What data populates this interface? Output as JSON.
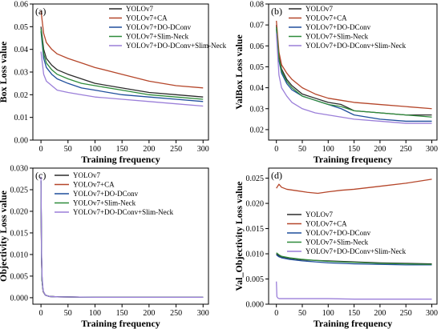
{
  "series_style": [
    {
      "name": "YOLOv7",
      "color": "#2b2b2b"
    },
    {
      "name": "YOLOv7+CA",
      "color": "#b5462a"
    },
    {
      "name": "YOLOv7+DO-DConv",
      "color": "#1f4e9c"
    },
    {
      "name": "YOLOv7+Slim-Neck",
      "color": "#2e8b3a"
    },
    {
      "name": "YOLOv7+DO-DConv+Slim-Neck",
      "color": "#9b7fd9"
    }
  ],
  "chart_data": [
    {
      "type": "line",
      "panel_label": "(a)",
      "xlabel": "Training frequency",
      "ylabel": "Box Loss value",
      "xlim": [
        -15,
        310
      ],
      "ylim": [
        0.0,
        0.06
      ],
      "xticks": [
        0,
        50,
        100,
        150,
        200,
        250,
        300
      ],
      "yticks": [
        0.0,
        0.01,
        0.02,
        0.03,
        0.04,
        0.05,
        0.06
      ],
      "ytick_labels": [
        "0.00",
        "0.01",
        "0.02",
        "0.03",
        "0.04",
        "0.05",
        "0.06"
      ],
      "legend_position": "top-right",
      "series": [
        {
          "name": "YOLOv7",
          "x": [
            0,
            5,
            10,
            20,
            30,
            50,
            75,
            100,
            150,
            200,
            250,
            300
          ],
          "values": [
            0.05,
            0.04,
            0.036,
            0.033,
            0.031,
            0.029,
            0.027,
            0.025,
            0.023,
            0.021,
            0.02,
            0.019
          ]
        },
        {
          "name": "YOLOv7+CA",
          "x": [
            0,
            5,
            10,
            20,
            30,
            50,
            75,
            100,
            150,
            200,
            250,
            300
          ],
          "values": [
            0.057,
            0.047,
            0.043,
            0.04,
            0.038,
            0.036,
            0.034,
            0.032,
            0.029,
            0.026,
            0.024,
            0.023
          ]
        },
        {
          "name": "YOLOv7+DO-DConv",
          "x": [
            0,
            5,
            10,
            20,
            30,
            50,
            75,
            100,
            150,
            200,
            250,
            300
          ],
          "values": [
            0.048,
            0.036,
            0.032,
            0.029,
            0.027,
            0.025,
            0.023,
            0.022,
            0.02,
            0.019,
            0.018,
            0.017
          ]
        },
        {
          "name": "YOLOv7+Slim-Neck",
          "x": [
            0,
            5,
            10,
            20,
            30,
            50,
            75,
            100,
            150,
            200,
            250,
            300
          ],
          "values": [
            0.049,
            0.038,
            0.034,
            0.031,
            0.029,
            0.027,
            0.025,
            0.024,
            0.022,
            0.02,
            0.019,
            0.018
          ]
        },
        {
          "name": "YOLOv7+DO-DConv+Slim-Neck",
          "x": [
            0,
            5,
            10,
            20,
            30,
            50,
            75,
            100,
            150,
            200,
            250,
            300
          ],
          "values": [
            0.039,
            0.029,
            0.026,
            0.024,
            0.022,
            0.021,
            0.02,
            0.019,
            0.018,
            0.017,
            0.016,
            0.015
          ]
        }
      ]
    },
    {
      "type": "line",
      "panel_label": "(b)",
      "xlabel": "Training frequency",
      "ylabel": "ValBox Loss value",
      "xlim": [
        -15,
        310
      ],
      "ylim": [
        0.015,
        0.08
      ],
      "xticks": [
        0,
        50,
        100,
        150,
        200,
        250,
        300
      ],
      "yticks": [
        0.02,
        0.03,
        0.04,
        0.05,
        0.06,
        0.07,
        0.08
      ],
      "ytick_labels": [
        "0.02",
        "0.03",
        "0.04",
        "0.05",
        "0.06",
        "0.07",
        "0.08"
      ],
      "legend_position": "top-right",
      "series": [
        {
          "name": "YOLOv7",
          "x": [
            0,
            5,
            10,
            20,
            30,
            50,
            75,
            100,
            125,
            150,
            200,
            250,
            300
          ],
          "values": [
            0.07,
            0.055,
            0.049,
            0.044,
            0.041,
            0.037,
            0.035,
            0.033,
            0.032,
            0.029,
            0.028,
            0.027,
            0.027
          ]
        },
        {
          "name": "YOLOv7+CA",
          "x": [
            0,
            5,
            10,
            20,
            30,
            50,
            75,
            100,
            125,
            150,
            200,
            250,
            300
          ],
          "values": [
            0.072,
            0.057,
            0.051,
            0.047,
            0.044,
            0.04,
            0.037,
            0.035,
            0.034,
            0.033,
            0.032,
            0.031,
            0.03
          ]
        },
        {
          "name": "YOLOv7+DO-DConv",
          "x": [
            0,
            5,
            10,
            20,
            30,
            50,
            75,
            100,
            125,
            150,
            200,
            250,
            300
          ],
          "values": [
            0.068,
            0.053,
            0.047,
            0.042,
            0.039,
            0.036,
            0.034,
            0.032,
            0.03,
            0.027,
            0.025,
            0.024,
            0.024
          ]
        },
        {
          "name": "YOLOv7+Slim-Neck",
          "x": [
            0,
            5,
            10,
            20,
            30,
            50,
            75,
            100,
            125,
            150,
            200,
            250,
            300
          ],
          "values": [
            0.069,
            0.054,
            0.048,
            0.043,
            0.04,
            0.036,
            0.034,
            0.032,
            0.031,
            0.029,
            0.028,
            0.027,
            0.026
          ]
        },
        {
          "name": "YOLOv7+DO-DConv+Slim-Neck",
          "x": [
            0,
            5,
            10,
            20,
            30,
            50,
            75,
            100,
            125,
            150,
            200,
            250,
            300
          ],
          "values": [
            0.066,
            0.046,
            0.04,
            0.036,
            0.033,
            0.03,
            0.028,
            0.027,
            0.026,
            0.025,
            0.024,
            0.023,
            0.023
          ]
        }
      ]
    },
    {
      "type": "line",
      "panel_label": "(c)",
      "xlabel": "Training frequency",
      "ylabel": "Objectivity Loss value",
      "xlim": [
        -15,
        310
      ],
      "ylim": [
        -0.0015,
        0.03
      ],
      "xticks": [
        0,
        50,
        100,
        150,
        200,
        250,
        300
      ],
      "yticks": [
        0.0,
        0.005,
        0.01,
        0.015,
        0.02,
        0.025,
        0.03
      ],
      "ytick_labels": [
        "0.000",
        "0.005",
        "0.010",
        "0.015",
        "0.020",
        "0.025",
        "0.030"
      ],
      "legend_position": "top-right",
      "series": [
        {
          "name": "YOLOv7",
          "x": [
            0,
            1,
            2,
            4,
            8,
            15,
            30,
            100,
            200,
            300
          ],
          "values": [
            0.027,
            0.01,
            0.004,
            0.0015,
            0.0006,
            0.0003,
            0.0002,
            0.0001,
            0.0001,
            0.0001
          ]
        },
        {
          "name": "YOLOv7+CA",
          "x": [
            0,
            1,
            2,
            4,
            8,
            15,
            30,
            100,
            200,
            300
          ],
          "values": [
            0.026,
            0.009,
            0.004,
            0.0014,
            0.0006,
            0.0003,
            0.0002,
            0.0001,
            0.0001,
            0.0001
          ]
        },
        {
          "name": "YOLOv7+DO-DConv",
          "x": [
            0,
            1,
            2,
            4,
            8,
            15,
            30,
            100,
            200,
            300
          ],
          "values": [
            0.027,
            0.01,
            0.004,
            0.0015,
            0.0006,
            0.0003,
            0.0002,
            0.0001,
            0.0001,
            0.0001
          ]
        },
        {
          "name": "YOLOv7+Slim-Neck",
          "x": [
            0,
            1,
            2,
            4,
            8,
            15,
            30,
            100,
            200,
            300
          ],
          "values": [
            0.027,
            0.01,
            0.004,
            0.0015,
            0.0006,
            0.0003,
            0.0002,
            0.0001,
            0.0001,
            0.0001
          ]
        },
        {
          "name": "YOLOv7+DO-DConv+Slim-Neck",
          "x": [
            0,
            1,
            2,
            4,
            8,
            15,
            30,
            100,
            200,
            300
          ],
          "values": [
            0.028,
            0.011,
            0.005,
            0.0016,
            0.0006,
            0.0003,
            0.0002,
            0.0001,
            0.0001,
            0.0001
          ]
        }
      ]
    },
    {
      "type": "line",
      "panel_label": "(d)",
      "xlabel": "Training frequency",
      "ylabel": "Val_Objectivity Loss value",
      "xlim": [
        -15,
        310
      ],
      "ylim": [
        0.0,
        0.027
      ],
      "xticks": [
        0,
        50,
        100,
        150,
        200,
        250,
        300
      ],
      "yticks": [
        0.0,
        0.005,
        0.01,
        0.015,
        0.02,
        0.025
      ],
      "ytick_labels": [
        "0.000",
        "0.005",
        "0.010",
        "0.015",
        "0.020",
        "0.025"
      ],
      "legend_position": "center-right",
      "series": [
        {
          "name": "YOLOv7",
          "x": [
            0,
            5,
            10,
            25,
            50,
            75,
            100,
            125,
            150,
            200,
            250,
            300
          ],
          "values": [
            0.01,
            0.0096,
            0.0094,
            0.0091,
            0.0088,
            0.0087,
            0.0086,
            0.0085,
            0.0084,
            0.0082,
            0.0081,
            0.008
          ]
        },
        {
          "name": "YOLOv7+CA",
          "x": [
            0,
            5,
            10,
            20,
            40,
            60,
            80,
            100,
            125,
            150,
            175,
            200,
            250,
            300
          ],
          "values": [
            0.023,
            0.0238,
            0.0232,
            0.0228,
            0.0225,
            0.0222,
            0.022,
            0.0223,
            0.0226,
            0.0228,
            0.0231,
            0.0234,
            0.024,
            0.0248
          ]
        },
        {
          "name": "YOLOv7+DO-DConv",
          "x": [
            0,
            5,
            10,
            25,
            50,
            75,
            100,
            125,
            150,
            200,
            250,
            300
          ],
          "values": [
            0.0098,
            0.0094,
            0.0092,
            0.0089,
            0.0086,
            0.0084,
            0.0082,
            0.0081,
            0.008,
            0.0079,
            0.0078,
            0.0078
          ]
        },
        {
          "name": "YOLOv7+Slim-Neck",
          "x": [
            0,
            5,
            10,
            25,
            50,
            75,
            100,
            125,
            150,
            200,
            250,
            300
          ],
          "values": [
            0.0102,
            0.0098,
            0.0095,
            0.0092,
            0.0089,
            0.0087,
            0.0085,
            0.0084,
            0.0083,
            0.0081,
            0.008,
            0.0079
          ]
        },
        {
          "name": "YOLOv7+DO-DConv+Slim-Neck",
          "x": [
            0,
            1,
            3,
            6,
            10,
            20,
            50,
            100,
            150,
            200,
            250,
            300
          ],
          "values": [
            0.0045,
            0.0015,
            0.0012,
            0.0011,
            0.0011,
            0.0011,
            0.0011,
            0.0011,
            0.001,
            0.001,
            0.001,
            0.001
          ]
        }
      ]
    }
  ]
}
